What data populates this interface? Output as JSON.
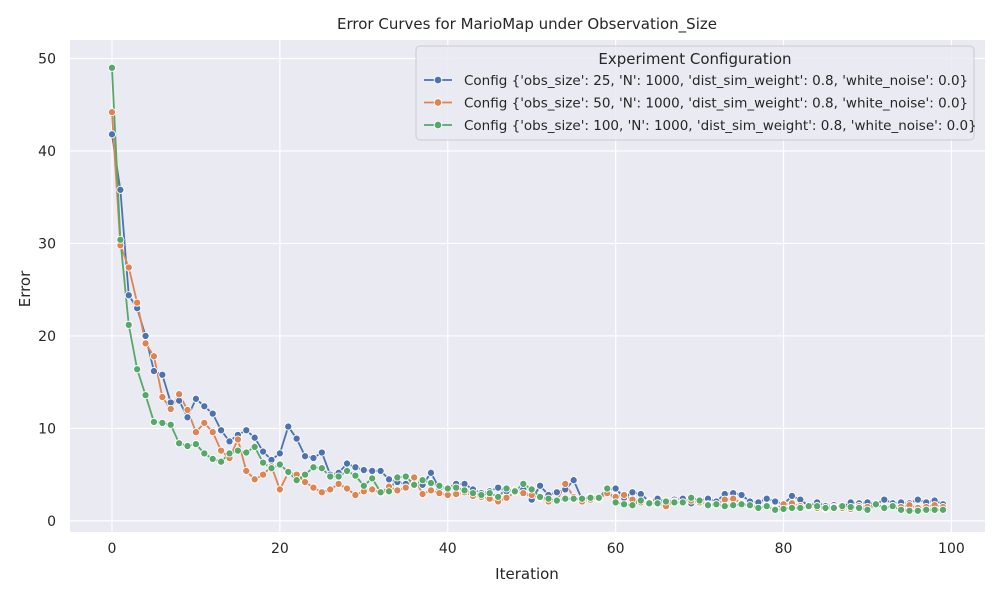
{
  "chart_data": {
    "type": "line",
    "title": "Error Curves for MarioMap under Observation_Size",
    "xlabel": "Iteration",
    "ylabel": "Error",
    "xlim": [
      -5,
      104
    ],
    "ylim": [
      -1.2,
      52
    ],
    "xticks": [
      0,
      20,
      40,
      60,
      80,
      100
    ],
    "yticks": [
      0,
      10,
      20,
      30,
      40,
      50
    ],
    "grid": true,
    "legend": {
      "title": "Experiment Configuration",
      "placement": "top-right"
    },
    "series": [
      {
        "name": "Config {'obs_size': 25, 'N': 1000, 'dist_sim_weight': 0.8, 'white_noise': 0.0}",
        "color": "#4c72b0",
        "x": [
          0,
          1,
          2,
          3,
          4,
          5,
          6,
          7,
          8,
          9,
          10,
          11,
          12,
          13,
          14,
          15,
          16,
          17,
          18,
          19,
          20,
          21,
          22,
          23,
          24,
          25,
          26,
          27,
          28,
          29,
          30,
          31,
          32,
          33,
          34,
          35,
          36,
          37,
          38,
          39,
          40,
          41,
          42,
          43,
          44,
          45,
          46,
          47,
          48,
          49,
          50,
          51,
          52,
          53,
          54,
          55,
          56,
          57,
          58,
          59,
          60,
          61,
          62,
          63,
          64,
          65,
          66,
          67,
          68,
          69,
          70,
          71,
          72,
          73,
          74,
          75,
          76,
          77,
          78,
          79,
          80,
          81,
          82,
          83,
          84,
          85,
          86,
          87,
          88,
          89,
          90,
          91,
          92,
          93,
          94,
          95,
          96,
          97,
          98,
          99
        ],
        "values": [
          41.8,
          35.8,
          24.4,
          23.0,
          20.0,
          16.2,
          15.8,
          12.8,
          13.0,
          11.2,
          13.2,
          12.4,
          11.6,
          9.8,
          8.6,
          9.3,
          9.8,
          9.0,
          7.5,
          6.6,
          7.3,
          10.2,
          8.9,
          7.0,
          6.8,
          7.4,
          5.0,
          5.2,
          6.2,
          5.8,
          5.5,
          5.4,
          5.4,
          4.5,
          4.2,
          4.0,
          4.0,
          3.9,
          5.2,
          3.5,
          3.6,
          4.0,
          4.0,
          3.4,
          3.0,
          3.2,
          3.6,
          3.2,
          3.3,
          3.4,
          2.3,
          3.8,
          2.8,
          3.1,
          3.4,
          4.4,
          2.3,
          2.6,
          2.5,
          3.3,
          3.5,
          2.5,
          3.1,
          2.9,
          2.1,
          2.4,
          2.1,
          2.3,
          2.4,
          1.9,
          2.2,
          2.4,
          2.1,
          2.9,
          3.0,
          2.8,
          2.1,
          2.0,
          2.4,
          2.1,
          1.8,
          2.7,
          2.3,
          1.6,
          2.0,
          1.6,
          1.7,
          1.5,
          2.0,
          1.9,
          2.0,
          1.8,
          2.3,
          1.9,
          2.0,
          1.9,
          2.3,
          2.0,
          2.2,
          1.8
        ]
      },
      {
        "name": "Config {'obs_size': 50, 'N': 1000, 'dist_sim_weight': 0.8, 'white_noise': 0.0}",
        "color": "#dd8452",
        "x": [
          0,
          1,
          2,
          3,
          4,
          5,
          6,
          7,
          8,
          9,
          10,
          11,
          12,
          13,
          14,
          15,
          16,
          17,
          18,
          19,
          20,
          21,
          22,
          23,
          24,
          25,
          26,
          27,
          28,
          29,
          30,
          31,
          32,
          33,
          34,
          35,
          36,
          37,
          38,
          39,
          40,
          41,
          42,
          43,
          44,
          45,
          46,
          47,
          48,
          49,
          50,
          51,
          52,
          53,
          54,
          55,
          56,
          57,
          58,
          59,
          60,
          61,
          62,
          63,
          64,
          65,
          66,
          67,
          68,
          69,
          70,
          71,
          72,
          73,
          74,
          75,
          76,
          77,
          78,
          79,
          80,
          81,
          82,
          83,
          84,
          85,
          86,
          87,
          88,
          89,
          90,
          91,
          92,
          93,
          94,
          95,
          96,
          97,
          98,
          99
        ],
        "values": [
          44.2,
          29.8,
          27.4,
          23.6,
          19.2,
          17.8,
          13.4,
          12.1,
          13.7,
          12.0,
          9.6,
          10.6,
          9.6,
          7.6,
          6.8,
          8.8,
          5.4,
          4.5,
          5.0,
          5.9,
          3.4,
          5.2,
          5.0,
          4.2,
          3.6,
          3.1,
          3.4,
          4.0,
          3.5,
          2.8,
          3.2,
          3.4,
          3.0,
          3.7,
          3.3,
          3.6,
          4.7,
          2.9,
          3.3,
          3.0,
          2.8,
          2.9,
          3.1,
          2.7,
          2.6,
          2.4,
          2.1,
          2.5,
          3.1,
          3.0,
          2.8,
          2.5,
          2.1,
          2.2,
          4.0,
          2.6,
          2.1,
          2.3,
          2.4,
          3.0,
          2.6,
          2.8,
          2.3,
          2.0,
          2.0,
          1.8,
          1.6,
          2.1,
          2.0,
          2.2,
          2.0,
          1.8,
          1.8,
          2.3,
          2.4,
          1.9,
          1.6,
          1.4,
          1.6,
          1.3,
          1.8,
          1.9,
          1.6,
          1.5,
          1.4,
          1.3,
          1.5,
          1.4,
          1.3,
          1.6,
          1.5,
          1.8,
          1.4,
          1.6,
          1.5,
          1.7,
          1.4,
          1.5,
          1.7,
          1.5
        ]
      },
      {
        "name": "Config {'obs_size': 100, 'N': 1000, 'dist_sim_weight': 0.8, 'white_noise': 0.0}",
        "color": "#55a868",
        "x": [
          0,
          1,
          2,
          3,
          4,
          5,
          6,
          7,
          8,
          9,
          10,
          11,
          12,
          13,
          14,
          15,
          16,
          17,
          18,
          19,
          20,
          21,
          22,
          23,
          24,
          25,
          26,
          27,
          28,
          29,
          30,
          31,
          32,
          33,
          34,
          35,
          36,
          37,
          38,
          39,
          40,
          41,
          42,
          43,
          44,
          45,
          46,
          47,
          48,
          49,
          50,
          51,
          52,
          53,
          54,
          55,
          56,
          57,
          58,
          59,
          60,
          61,
          62,
          63,
          64,
          65,
          66,
          67,
          68,
          69,
          70,
          71,
          72,
          73,
          74,
          75,
          76,
          77,
          78,
          79,
          80,
          81,
          82,
          83,
          84,
          85,
          86,
          87,
          88,
          89,
          90,
          91,
          92,
          93,
          94,
          95,
          96,
          97,
          98,
          99
        ],
        "values": [
          49.0,
          30.4,
          21.2,
          16.4,
          13.6,
          10.7,
          10.6,
          10.4,
          8.4,
          8.1,
          8.3,
          7.3,
          6.7,
          6.4,
          7.3,
          7.6,
          7.4,
          8.0,
          6.3,
          5.7,
          6.1,
          5.3,
          4.4,
          5.0,
          5.8,
          5.7,
          4.8,
          4.8,
          5.4,
          4.9,
          3.8,
          4.6,
          3.1,
          3.2,
          4.7,
          4.8,
          3.9,
          4.4,
          4.1,
          3.8,
          3.5,
          3.6,
          3.3,
          3.0,
          2.8,
          3.0,
          2.6,
          3.5,
          3.2,
          4.0,
          3.4,
          2.6,
          2.4,
          2.2,
          2.4,
          2.4,
          2.4,
          2.5,
          2.5,
          3.5,
          2.0,
          1.8,
          1.7,
          2.2,
          1.9,
          1.9,
          2.1,
          2.0,
          2.0,
          2.5,
          2.2,
          1.7,
          1.8,
          1.6,
          1.7,
          1.8,
          1.7,
          1.4,
          1.6,
          1.2,
          1.3,
          1.4,
          1.4,
          1.6,
          1.6,
          1.4,
          1.4,
          1.6,
          1.5,
          1.4,
          1.2,
          1.8,
          1.4,
          1.6,
          1.2,
          1.1,
          1.1,
          1.2,
          1.2,
          1.2
        ]
      }
    ]
  }
}
